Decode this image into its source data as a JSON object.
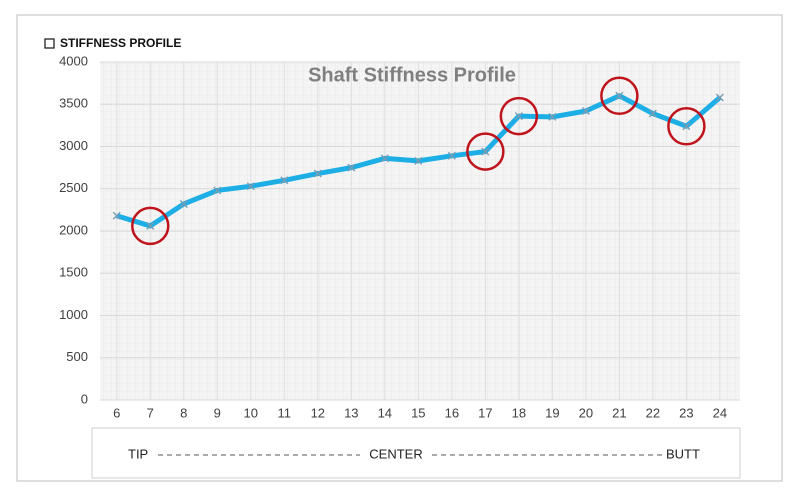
{
  "chart_data": {
    "type": "line",
    "header": "STIFFNESS PROFILE",
    "title": "Shaft Stiffness Profile",
    "x": [
      6,
      7,
      8,
      9,
      10,
      11,
      12,
      13,
      14,
      15,
      16,
      17,
      18,
      19,
      20,
      21,
      22,
      23,
      24
    ],
    "series": [
      {
        "color": "#1eaee6",
        "values": [
          2180,
          2060,
          2320,
          2480,
          2530,
          2600,
          2680,
          2750,
          2860,
          2830,
          2890,
          2940,
          3360,
          3350,
          3420,
          3600,
          3390,
          3240,
          3580
        ]
      }
    ],
    "highlight_x": [
      7,
      17,
      18,
      21,
      23
    ],
    "highlight_color": "#c0141c",
    "xlim": [
      5.5,
      24.6
    ],
    "xticks": [
      6,
      7,
      8,
      9,
      10,
      11,
      12,
      13,
      14,
      15,
      16,
      17,
      18,
      19,
      20,
      21,
      22,
      23,
      24
    ],
    "ylim": [
      0,
      4000
    ],
    "yticks": [
      0,
      500,
      1000,
      1500,
      2000,
      2500,
      3000,
      3500,
      4000
    ],
    "grid": true,
    "position_labels": [
      "TIP",
      "CENTER",
      "BUTT"
    ]
  }
}
